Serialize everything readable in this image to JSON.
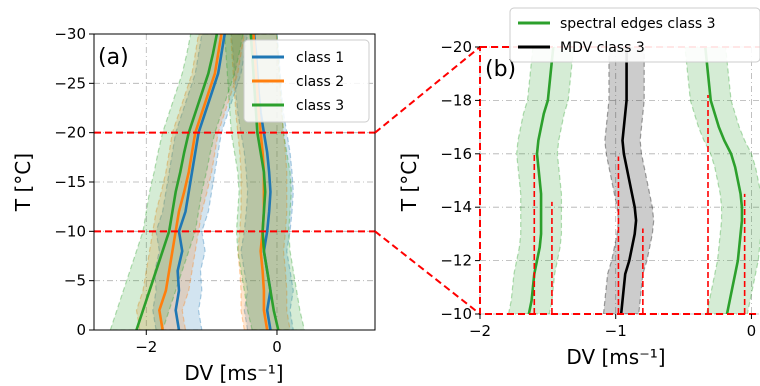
{
  "colors": {
    "class_1": "#1f77b4",
    "class_2": "#ff7f0e",
    "class_3": "#2ca02c",
    "mdv": "#000000",
    "highlight": "#ff0000",
    "grid": "#b0b0b0"
  },
  "chart_data": [
    {
      "id": "a",
      "type": "line",
      "panel_label": "(a)",
      "xlabel": "DV [ms⁻¹]",
      "ylabel": "T [°C]",
      "xlim": [
        -2.8,
        1.5
      ],
      "ylim": [
        0,
        -30
      ],
      "xticks": [
        -2,
        0
      ],
      "xtick_labels": [
        "−2",
        "0"
      ],
      "yticks": [
        0,
        -5,
        -10,
        -15,
        -20,
        -25,
        -30
      ],
      "ytick_labels": [
        "0",
        "−5",
        "−10",
        "−15",
        "−20",
        "−25",
        "−30"
      ],
      "grid": true,
      "legend_position": "top-right",
      "legend": [
        "class 1",
        "class 2",
        "class 3"
      ],
      "highlight_lines": [
        -10,
        -20
      ],
      "y": [
        0,
        -2,
        -4,
        -6,
        -8,
        -10,
        -12,
        -14,
        -16,
        -18,
        -20,
        -22,
        -24,
        -26,
        -28,
        -30
      ],
      "series": [
        {
          "name": "class 1",
          "color_key": "class_1",
          "left": [
            -1.5,
            -1.55,
            -1.5,
            -1.52,
            -1.45,
            -1.5,
            -1.4,
            -1.35,
            -1.3,
            -1.25,
            -1.2,
            -1.1,
            -1.0,
            -0.9,
            -0.85,
            -0.8
          ],
          "right": [
            -0.1,
            -0.15,
            -0.1,
            -0.15,
            -0.2,
            -0.15,
            -0.12,
            -0.1,
            -0.12,
            -0.15,
            -0.2,
            -0.25,
            -0.28,
            -0.3,
            -0.32,
            -0.35
          ],
          "band": 0.35
        },
        {
          "name": "class 2",
          "color_key": "class_2",
          "left": [
            -1.75,
            -1.8,
            -1.7,
            -1.65,
            -1.6,
            -1.55,
            -1.5,
            -1.42,
            -1.35,
            -1.3,
            -1.25,
            -1.15,
            -1.05,
            -0.95,
            -0.9,
            -0.85
          ],
          "right": [
            -0.15,
            -0.2,
            -0.2,
            -0.22,
            -0.25,
            -0.22,
            -0.2,
            -0.2,
            -0.2,
            -0.22,
            -0.25,
            -0.28,
            -0.3,
            -0.32,
            -0.34,
            -0.36
          ],
          "band": 0.35
        },
        {
          "name": "class 3",
          "color_key": "class_3",
          "left": [
            -2.15,
            -2.05,
            -1.95,
            -1.85,
            -1.75,
            -1.65,
            -1.6,
            -1.55,
            -1.48,
            -1.42,
            -1.35,
            -1.25,
            -1.15,
            -1.05,
            -0.98,
            -0.92
          ],
          "right": [
            0.02,
            -0.05,
            -0.1,
            -0.15,
            -0.2,
            -0.22,
            -0.2,
            -0.18,
            -0.2,
            -0.25,
            -0.3,
            -0.32,
            -0.34,
            -0.36,
            -0.38,
            -0.4
          ],
          "band": 0.4
        }
      ]
    },
    {
      "id": "b",
      "type": "line",
      "panel_label": "(b)",
      "xlabel": "DV [ms⁻¹]",
      "ylabel": "T [°C]",
      "xlim": [
        -2,
        0.1
      ],
      "ylim": [
        -10,
        -20
      ],
      "xticks": [
        -2,
        -1,
        0
      ],
      "xtick_labels": [
        "−2",
        "−1",
        "0"
      ],
      "yticks": [
        -10,
        -12,
        -14,
        -16,
        -18,
        -20
      ],
      "ytick_labels": [
        "−10",
        "−12",
        "−14",
        "−16",
        "−18",
        "−20"
      ],
      "grid": true,
      "legend_position": "top-right",
      "legend": [
        "spectral edges class 3",
        "MDV class 3"
      ],
      "y": [
        -10,
        -10.5,
        -11,
        -11.5,
        -12,
        -12.5,
        -13,
        -13.5,
        -14,
        -14.5,
        -15,
        -15.5,
        -16,
        -16.5,
        -17,
        -17.5,
        -18,
        -18.5,
        -19,
        -19.5,
        -20
      ],
      "series": [
        {
          "name": "spectral edges class 3",
          "color_key": "class_3",
          "left": [
            -1.64,
            -1.62,
            -1.61,
            -1.6,
            -1.58,
            -1.56,
            -1.55,
            -1.55,
            -1.55,
            -1.55,
            -1.56,
            -1.57,
            -1.58,
            -1.57,
            -1.55,
            -1.53,
            -1.5,
            -1.49,
            -1.48,
            -1.47,
            -1.46
          ],
          "right": [
            -0.18,
            -0.16,
            -0.14,
            -0.12,
            -0.1,
            -0.09,
            -0.08,
            -0.07,
            -0.07,
            -0.08,
            -0.1,
            -0.12,
            -0.15,
            -0.2,
            -0.24,
            -0.27,
            -0.3,
            -0.31,
            -0.32,
            -0.33,
            -0.34
          ],
          "band": 0.15
        },
        {
          "name": "MDV class 3",
          "color_key": "mdv",
          "center": [
            -0.96,
            -0.95,
            -0.94,
            -0.93,
            -0.9,
            -0.88,
            -0.86,
            -0.85,
            -0.86,
            -0.88,
            -0.9,
            -0.92,
            -0.94,
            -0.95,
            -0.94,
            -0.93,
            -0.92,
            -0.92,
            -0.92,
            -0.92,
            -0.92
          ],
          "band": 0.13
        }
      ],
      "dashed_markers": [
        {
          "x": -1.6,
          "y_from": -10,
          "y_to": -16
        },
        {
          "x": -1.47,
          "y_from": -10,
          "y_to": -14.2
        },
        {
          "x": -0.98,
          "y_from": -10,
          "y_to": -15.9
        },
        {
          "x": -0.8,
          "y_from": -10,
          "y_to": -13.2
        },
        {
          "x": -0.32,
          "y_from": -10,
          "y_to": -18.2
        },
        {
          "x": -0.05,
          "y_from": -10,
          "y_to": -14.5
        }
      ]
    }
  ]
}
